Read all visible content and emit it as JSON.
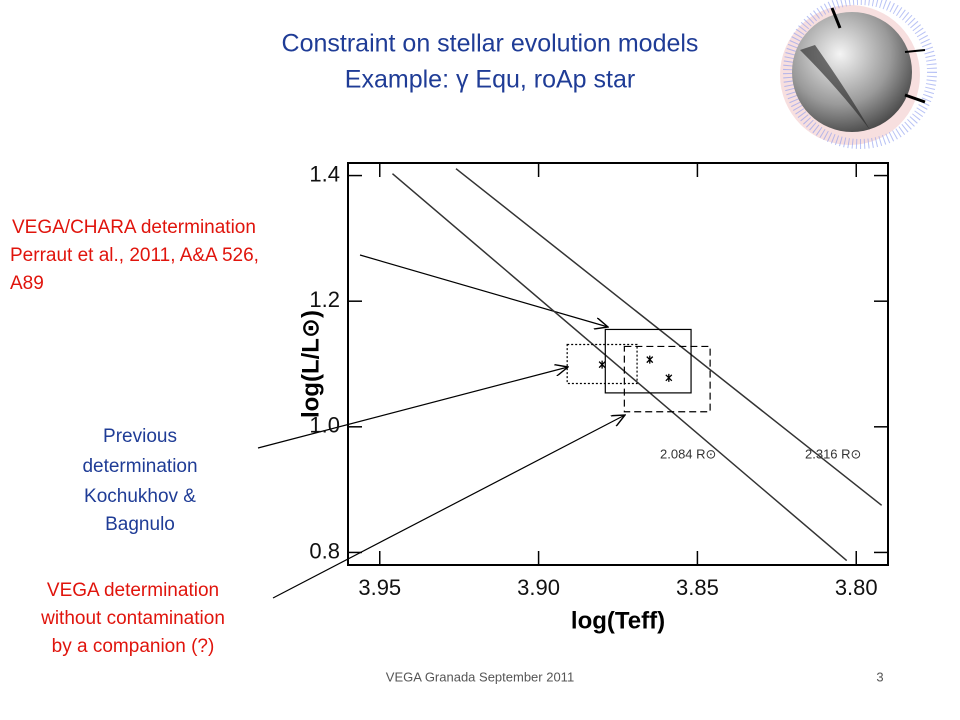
{
  "slide": {
    "title": [
      "Constraint on stellar evolution models",
      "Example: γ Equ, roAp star"
    ],
    "chara_label": [
      "VEGA/CHARA determination",
      "Perraut et al., 2011, A&A 526,",
      "A89"
    ],
    "previous_label": [
      "Previous",
      "determination",
      "Kochukhov &",
      "Bagnulo"
    ],
    "vega_label": [
      "VEGA determination",
      "without contamination",
      "by a companion (?)"
    ],
    "footer": "VEGA Granada September 2011",
    "page": "3"
  },
  "chart_data": {
    "type": "scatter",
    "x_label": "log(Teff)",
    "y_label": "log(L/L⊙)",
    "xlim": [
      3.96,
      3.79
    ],
    "ylim": [
      0.78,
      1.42
    ],
    "xticks": [
      3.95,
      {
        "value": 3.9,
        "label": "3.90"
      },
      3.85,
      {
        "value": 3.8,
        "label": "3.80"
      }
    ],
    "yticks": [
      1.4,
      1.2,
      {
        "value": 1.0,
        "label": "1.0"
      },
      0.8
    ],
    "lines": [
      {
        "name": "2.084 R⊙",
        "x": [
          3.946,
          3.803
        ],
        "y": [
          1.403,
          0.787
        ]
      },
      {
        "name": "2.316 R⊙",
        "x": [
          3.926,
          3.792
        ],
        "y": [
          1.411,
          0.875
        ]
      }
    ],
    "boxes": [
      {
        "style": "solid",
        "x": [
          3.879,
          3.852
        ],
        "y": [
          1.155,
          1.054
        ]
      },
      {
        "style": "dotted",
        "x": [
          3.891,
          3.869
        ],
        "y": [
          1.131,
          1.069
        ]
      },
      {
        "style": "dashed",
        "x": [
          3.873,
          3.846
        ],
        "y": [
          1.128,
          1.024
        ]
      }
    ],
    "points": {
      "x": [
        3.88,
        3.865,
        3.859
      ],
      "y": [
        1.099,
        1.107,
        1.078
      ]
    }
  }
}
